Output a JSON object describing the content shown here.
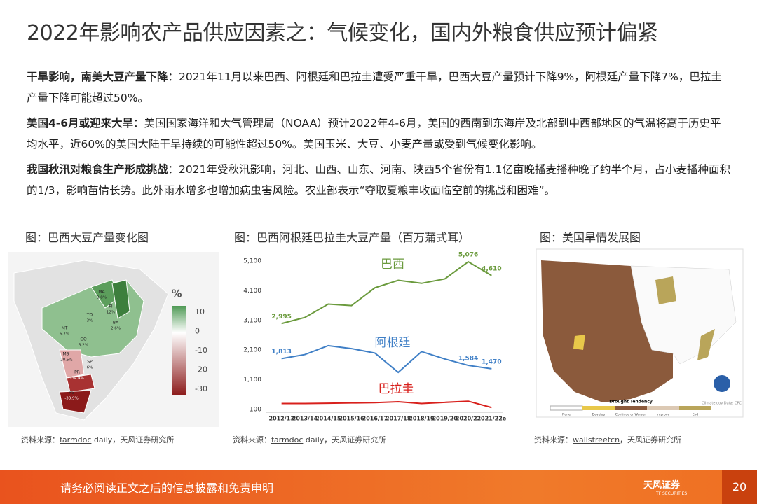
{
  "title": "2022年影响农产品供应因素之：气候变化，国内外粮食供应预计偏紧",
  "paragraphs": [
    {
      "lead": "干旱影响，南美大豆产量下降",
      "text": "：2021年11月以来巴西、阿根廷和巴拉圭遭受严重干旱，巴西大豆产量预计下降9%，阿根廷产量下降7%，巴拉圭产量下降可能超过50%。"
    },
    {
      "lead": "美国4-6月或迎来大旱",
      "text": "：美国国家海洋和大气管理局（NOAA）预计2022年4-6月，美国的西南到东海岸及北部到中西部地区的气温将高于历史平均水平，近60%的美国大陆干旱持续的可能性超过50%。美国玉米、大豆、小麦产量或受到气候变化影响。"
    },
    {
      "lead": "我国秋汛对粮食生产形成挑战",
      "text": "：2021年受秋汛影响，河北、山西、山东、河南、陕西5个省份有1.1亿亩晚播麦播种晚了约半个月，占小麦播种面积的1/3，影响苗情长势。此外雨水增多也增加病虫害风险。农业部表示“夺取夏粮丰收面临空前的挑战和困难”。"
    }
  ],
  "figures": [
    {
      "caption": "图：巴西大豆产量变化图",
      "source_prefix": "资料来源：",
      "source_link": "farmdoc",
      "source_suffix": " daily，天风证券研究所"
    },
    {
      "caption": "图：巴西阿根廷巴拉圭大豆产量（百万蒲式耳）",
      "source_prefix": "资料来源：",
      "source_link": "farmdoc",
      "source_suffix": " daily，天风证券研究所"
    },
    {
      "caption": "图：美国旱情发展图",
      "source_prefix": "资料来源：",
      "source_link": "wallstreetcn",
      "source_suffix": "，天风证券研究所"
    }
  ],
  "brazil_map": {
    "legend_title": "%",
    "legend_ticks": [
      10,
      0,
      -10,
      -20,
      -30
    ],
    "states": [
      {
        "abbr": "MA",
        "label": "3.8%"
      },
      {
        "abbr": "PI",
        "label": "12%"
      },
      {
        "abbr": "TO",
        "label": "3%"
      },
      {
        "abbr": "BA",
        "label": "2.6%"
      },
      {
        "abbr": "MT",
        "label": "6.7%"
      },
      {
        "abbr": "GO",
        "label": "3.2%"
      },
      {
        "abbr": "MS",
        "label": "-20.5%"
      },
      {
        "abbr": "SP",
        "label": "6%"
      },
      {
        "abbr": "PR",
        "label": "-34.4%"
      },
      {
        "abbr": "RS",
        "label": "-33.9%"
      }
    ]
  },
  "drought_map": {
    "legend_title": "Drought Tendency",
    "legend_items": [
      "None",
      "Develop",
      "Continue or Worsen",
      "Improve",
      "End"
    ],
    "credit": "Climate.gov Data: CPC"
  },
  "chart_data": {
    "type": "line",
    "categories": [
      "2012/13",
      "2013/14",
      "2014/15",
      "2015/16",
      "2016/17",
      "2017/18",
      "2018/19",
      "2019/20",
      "2020/21",
      "2021/22e"
    ],
    "ylim": [
      100,
      5100
    ],
    "yticks": [
      {
        "value": 5100,
        "label": "5,100"
      },
      {
        "value": 4100,
        "label": "4,100"
      },
      {
        "value": 3100,
        "label": "3,100"
      },
      {
        "value": 2100,
        "label": "2,100"
      },
      {
        "value": 1100,
        "label": "1,100"
      },
      100
    ],
    "series": [
      {
        "name": "巴西",
        "color": "#6a9a3c",
        "values": [
          2995,
          3200,
          3650,
          3600,
          4200,
          4450,
          4350,
          4500,
          5076,
          4610
        ],
        "value_labels": [
          "2,995",
          null,
          null,
          null,
          null,
          null,
          null,
          null,
          "5,076",
          "4,610"
        ]
      },
      {
        "name": "阿根廷",
        "color": "#3f7fc6",
        "values": [
          1813,
          1950,
          2250,
          2150,
          2000,
          1350,
          2050,
          1800,
          1584,
          1470
        ],
        "value_labels": [
          "1,813",
          null,
          null,
          null,
          null,
          null,
          null,
          null,
          "1,584",
          "1,470"
        ]
      },
      {
        "name": "巴拉圭",
        "color": "#d8201c",
        "values": [
          301,
          300,
          310,
          320,
          330,
          360,
          300,
          340,
          378,
          165
        ],
        "value_labels": [
          null,
          null,
          null,
          null,
          null,
          null,
          null,
          null,
          null,
          null
        ]
      }
    ]
  },
  "footer": {
    "disclaimer": "请务必阅读正文之后的信息披露和免责申明",
    "logo": "天风证券",
    "logo_en": "TF SECURITIES",
    "page": "20"
  }
}
